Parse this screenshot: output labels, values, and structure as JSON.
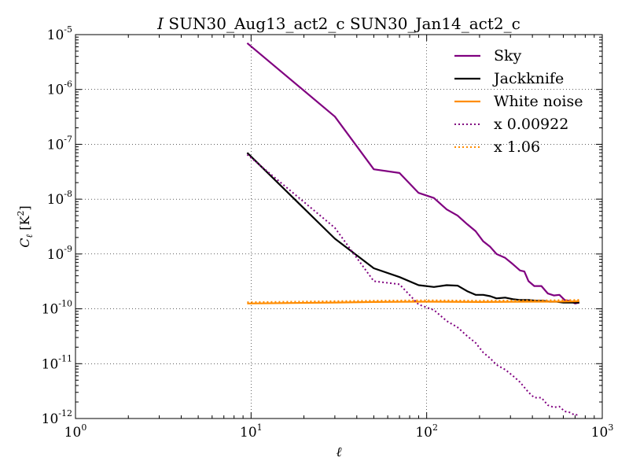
{
  "chart_data": {
    "type": "line",
    "title": {
      "italic": "I",
      "rest": " SUN30_Aug13_act2_c SUN30_Jan14_act2_c"
    },
    "xlabel": "ℓ",
    "ylabel": {
      "main": "C",
      "sub": "ℓ",
      "unit_pre": " [K",
      "unit_sup": "2",
      "unit_post": "]"
    },
    "xscale": "log",
    "yscale": "log",
    "xlim": [
      1,
      1000
    ],
    "ylim": [
      1e-12,
      1e-05
    ],
    "grid": true,
    "legend_position": "top-right",
    "x_ticks": [
      {
        "value": 1,
        "base": "10",
        "exp": "0"
      },
      {
        "value": 10,
        "base": "10",
        "exp": "1"
      },
      {
        "value": 100,
        "base": "10",
        "exp": "2"
      },
      {
        "value": 1000,
        "base": "10",
        "exp": "3"
      }
    ],
    "y_ticks": [
      {
        "value": 1e-12,
        "base": "10",
        "exp": "-12"
      },
      {
        "value": 1e-11,
        "base": "10",
        "exp": "-11"
      },
      {
        "value": 1e-10,
        "base": "10",
        "exp": "-10"
      },
      {
        "value": 1e-09,
        "base": "10",
        "exp": "-9"
      },
      {
        "value": 1e-08,
        "base": "10",
        "exp": "-8"
      },
      {
        "value": 1e-07,
        "base": "10",
        "exp": "-7"
      },
      {
        "value": 1e-06,
        "base": "10",
        "exp": "-6"
      },
      {
        "value": 1e-05,
        "base": "10",
        "exp": "-5"
      }
    ],
    "series": [
      {
        "name": "Sky",
        "color": "#800080",
        "style": "solid",
        "points": [
          [
            9.5,
            7e-06
          ],
          [
            30,
            3.2e-07
          ],
          [
            50,
            3.5e-08
          ],
          [
            70,
            3e-08
          ],
          [
            90,
            1.3e-08
          ],
          [
            110,
            1.05e-08
          ],
          [
            130,
            6.5e-09
          ],
          [
            150,
            5e-09
          ],
          [
            170,
            3.5e-09
          ],
          [
            190,
            2.6e-09
          ],
          [
            210,
            1.7e-09
          ],
          [
            230,
            1.35e-09
          ],
          [
            250,
            1e-09
          ],
          [
            280,
            8.5e-10
          ],
          [
            310,
            6.5e-10
          ],
          [
            340,
            5e-10
          ],
          [
            360,
            4.8e-10
          ],
          [
            380,
            3.2e-10
          ],
          [
            410,
            2.6e-10
          ],
          [
            450,
            2.6e-10
          ],
          [
            490,
            1.9e-10
          ],
          [
            530,
            1.75e-10
          ],
          [
            570,
            1.8e-10
          ],
          [
            610,
            1.45e-10
          ],
          [
            650,
            1.4e-10
          ],
          [
            700,
            1.25e-10
          ],
          [
            740,
            1.3e-10
          ]
        ]
      },
      {
        "name": "Jackknife",
        "color": "#000000",
        "style": "solid",
        "points": [
          [
            9.5,
            7e-08
          ],
          [
            30,
            1.9e-09
          ],
          [
            50,
            5.5e-10
          ],
          [
            70,
            3.8e-10
          ],
          [
            90,
            2.7e-10
          ],
          [
            110,
            2.5e-10
          ],
          [
            130,
            2.7e-10
          ],
          [
            150,
            2.65e-10
          ],
          [
            170,
            2.1e-10
          ],
          [
            190,
            1.8e-10
          ],
          [
            210,
            1.8e-10
          ],
          [
            230,
            1.7e-10
          ],
          [
            250,
            1.55e-10
          ],
          [
            280,
            1.6e-10
          ],
          [
            310,
            1.5e-10
          ],
          [
            340,
            1.45e-10
          ],
          [
            380,
            1.45e-10
          ],
          [
            420,
            1.4e-10
          ],
          [
            460,
            1.4e-10
          ],
          [
            500,
            1.35e-10
          ],
          [
            550,
            1.35e-10
          ],
          [
            600,
            1.3e-10
          ],
          [
            650,
            1.3e-10
          ],
          [
            700,
            1.3e-10
          ],
          [
            740,
            1.3e-10
          ]
        ]
      },
      {
        "name": "White noise",
        "color": "#ff8c00",
        "style": "solid",
        "points": [
          [
            9.5,
            1.25e-10
          ],
          [
            30,
            1.3e-10
          ],
          [
            50,
            1.33e-10
          ],
          [
            100,
            1.35e-10
          ],
          [
            200,
            1.33e-10
          ],
          [
            300,
            1.34e-10
          ],
          [
            400,
            1.35e-10
          ],
          [
            500,
            1.35e-10
          ],
          [
            600,
            1.36e-10
          ],
          [
            700,
            1.37e-10
          ],
          [
            740,
            1.38e-10
          ]
        ]
      },
      {
        "name": "x 0.00922",
        "color": "#800080",
        "style": "dotted",
        "points": [
          [
            9.5,
            6.5e-08
          ],
          [
            30,
            3e-09
          ],
          [
            50,
            3.2e-10
          ],
          [
            70,
            2.8e-10
          ],
          [
            90,
            1.2e-10
          ],
          [
            110,
            9.5e-11
          ],
          [
            130,
            6e-11
          ],
          [
            150,
            4.6e-11
          ],
          [
            170,
            3.2e-11
          ],
          [
            190,
            2.4e-11
          ],
          [
            210,
            1.6e-11
          ],
          [
            230,
            1.25e-11
          ],
          [
            250,
            9.5e-12
          ],
          [
            280,
            7.8e-12
          ],
          [
            310,
            6e-12
          ],
          [
            340,
            4.6e-12
          ],
          [
            380,
            3e-12
          ],
          [
            410,
            2.4e-12
          ],
          [
            450,
            2.4e-12
          ],
          [
            490,
            1.75e-12
          ],
          [
            530,
            1.6e-12
          ],
          [
            570,
            1.65e-12
          ],
          [
            610,
            1.35e-12
          ],
          [
            650,
            1.3e-12
          ],
          [
            700,
            1.15e-12
          ],
          [
            740,
            1.2e-12
          ]
        ]
      },
      {
        "name": "x 1.06",
        "color": "#ff8c00",
        "style": "dotted",
        "points": [
          [
            9.5,
            1.32e-10
          ],
          [
            30,
            1.38e-10
          ],
          [
            50,
            1.41e-10
          ],
          [
            100,
            1.43e-10
          ],
          [
            200,
            1.41e-10
          ],
          [
            300,
            1.42e-10
          ],
          [
            400,
            1.43e-10
          ],
          [
            500,
            1.43e-10
          ],
          [
            600,
            1.44e-10
          ],
          [
            700,
            1.45e-10
          ],
          [
            740,
            1.46e-10
          ]
        ]
      }
    ]
  }
}
